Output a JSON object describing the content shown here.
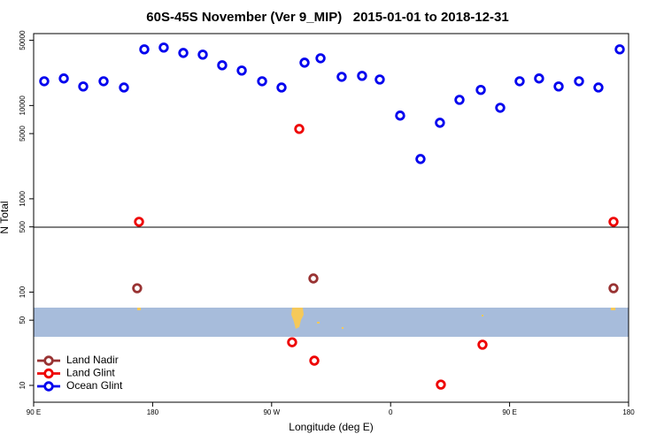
{
  "chart_data": {
    "type": "scatter",
    "title": "60S-45S November (Ver 9_MIP)   2015-01-01 to 2018-12-31",
    "x_label": "Longitude (deg E)",
    "y_label": "N Total",
    "log_y": true,
    "legend": "bottom-left",
    "xlim": [
      90,
      540
    ],
    "xticks": [
      {
        "value": 90,
        "label": "90 E"
      },
      180,
      {
        "value": 270,
        "label": "90 W"
      },
      {
        "value": 360,
        "label": "0"
      },
      {
        "value": 450,
        "label": "90 E"
      },
      {
        "value": 540,
        "label": "180"
      }
    ],
    "ylim": [
      6.6,
      59000
    ],
    "yticks": [
      10,
      50,
      100,
      500,
      1000,
      5000,
      10000,
      50000
    ],
    "series": [
      {
        "name": "Land Nadir",
        "color": "#993333",
        "x": [
          168.3,
          301.6,
          528.6
        ],
        "values": [
          110,
          140,
          110
        ]
      },
      {
        "name": "Land Glint",
        "color": "#ee0000",
        "x": [
          169.7,
          290.9,
          528.6,
          285.5,
          302.3,
          398.0,
          429.5
        ],
        "values": [
          567,
          5610,
          567,
          29,
          18.4,
          10.2,
          27.3
        ]
      },
      {
        "name": "Ocean Glint",
        "color": "#0000ee",
        "x": [
          98.0,
          112.8,
          127.5,
          142.9,
          158.3,
          173.7,
          188.4,
          203.2,
          217.9,
          232.6,
          247.4,
          262.8,
          277.5,
          294.9,
          307.0,
          323.0,
          338.4,
          351.8,
          367.2,
          382.6,
          397.3,
          412.1,
          428.2,
          442.9,
          457.6,
          472.3,
          487.1,
          502.5,
          517.2,
          533.3
        ],
        "values": [
          18200,
          19500,
          16000,
          18200,
          15600,
          40000,
          41800,
          36600,
          35100,
          27000,
          23700,
          18200,
          15600,
          28800,
          32100,
          20300,
          20800,
          19000,
          7800,
          2670,
          6530,
          11500,
          14700,
          9460,
          18200,
          19500,
          16000,
          18200,
          15600,
          40000
        ]
      }
    ]
  }
}
